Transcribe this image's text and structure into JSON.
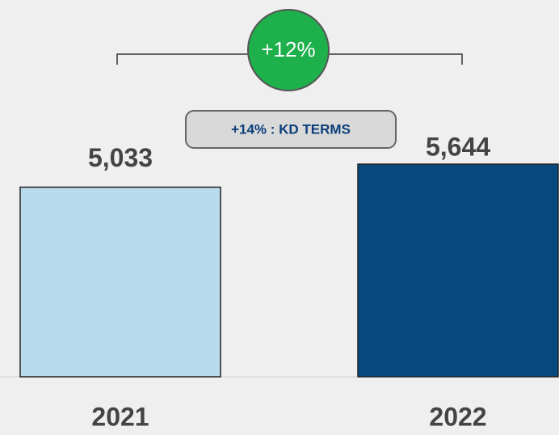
{
  "chart_data": {
    "type": "bar",
    "categories": [
      "2021",
      "2022"
    ],
    "values": [
      5033,
      5644
    ],
    "value_labels": [
      "5,033",
      "5,644"
    ],
    "colors": [
      "#b8dcee",
      "#05497f"
    ],
    "annotations": [
      "+12%",
      "+14% : KD TERMS"
    ]
  }
}
